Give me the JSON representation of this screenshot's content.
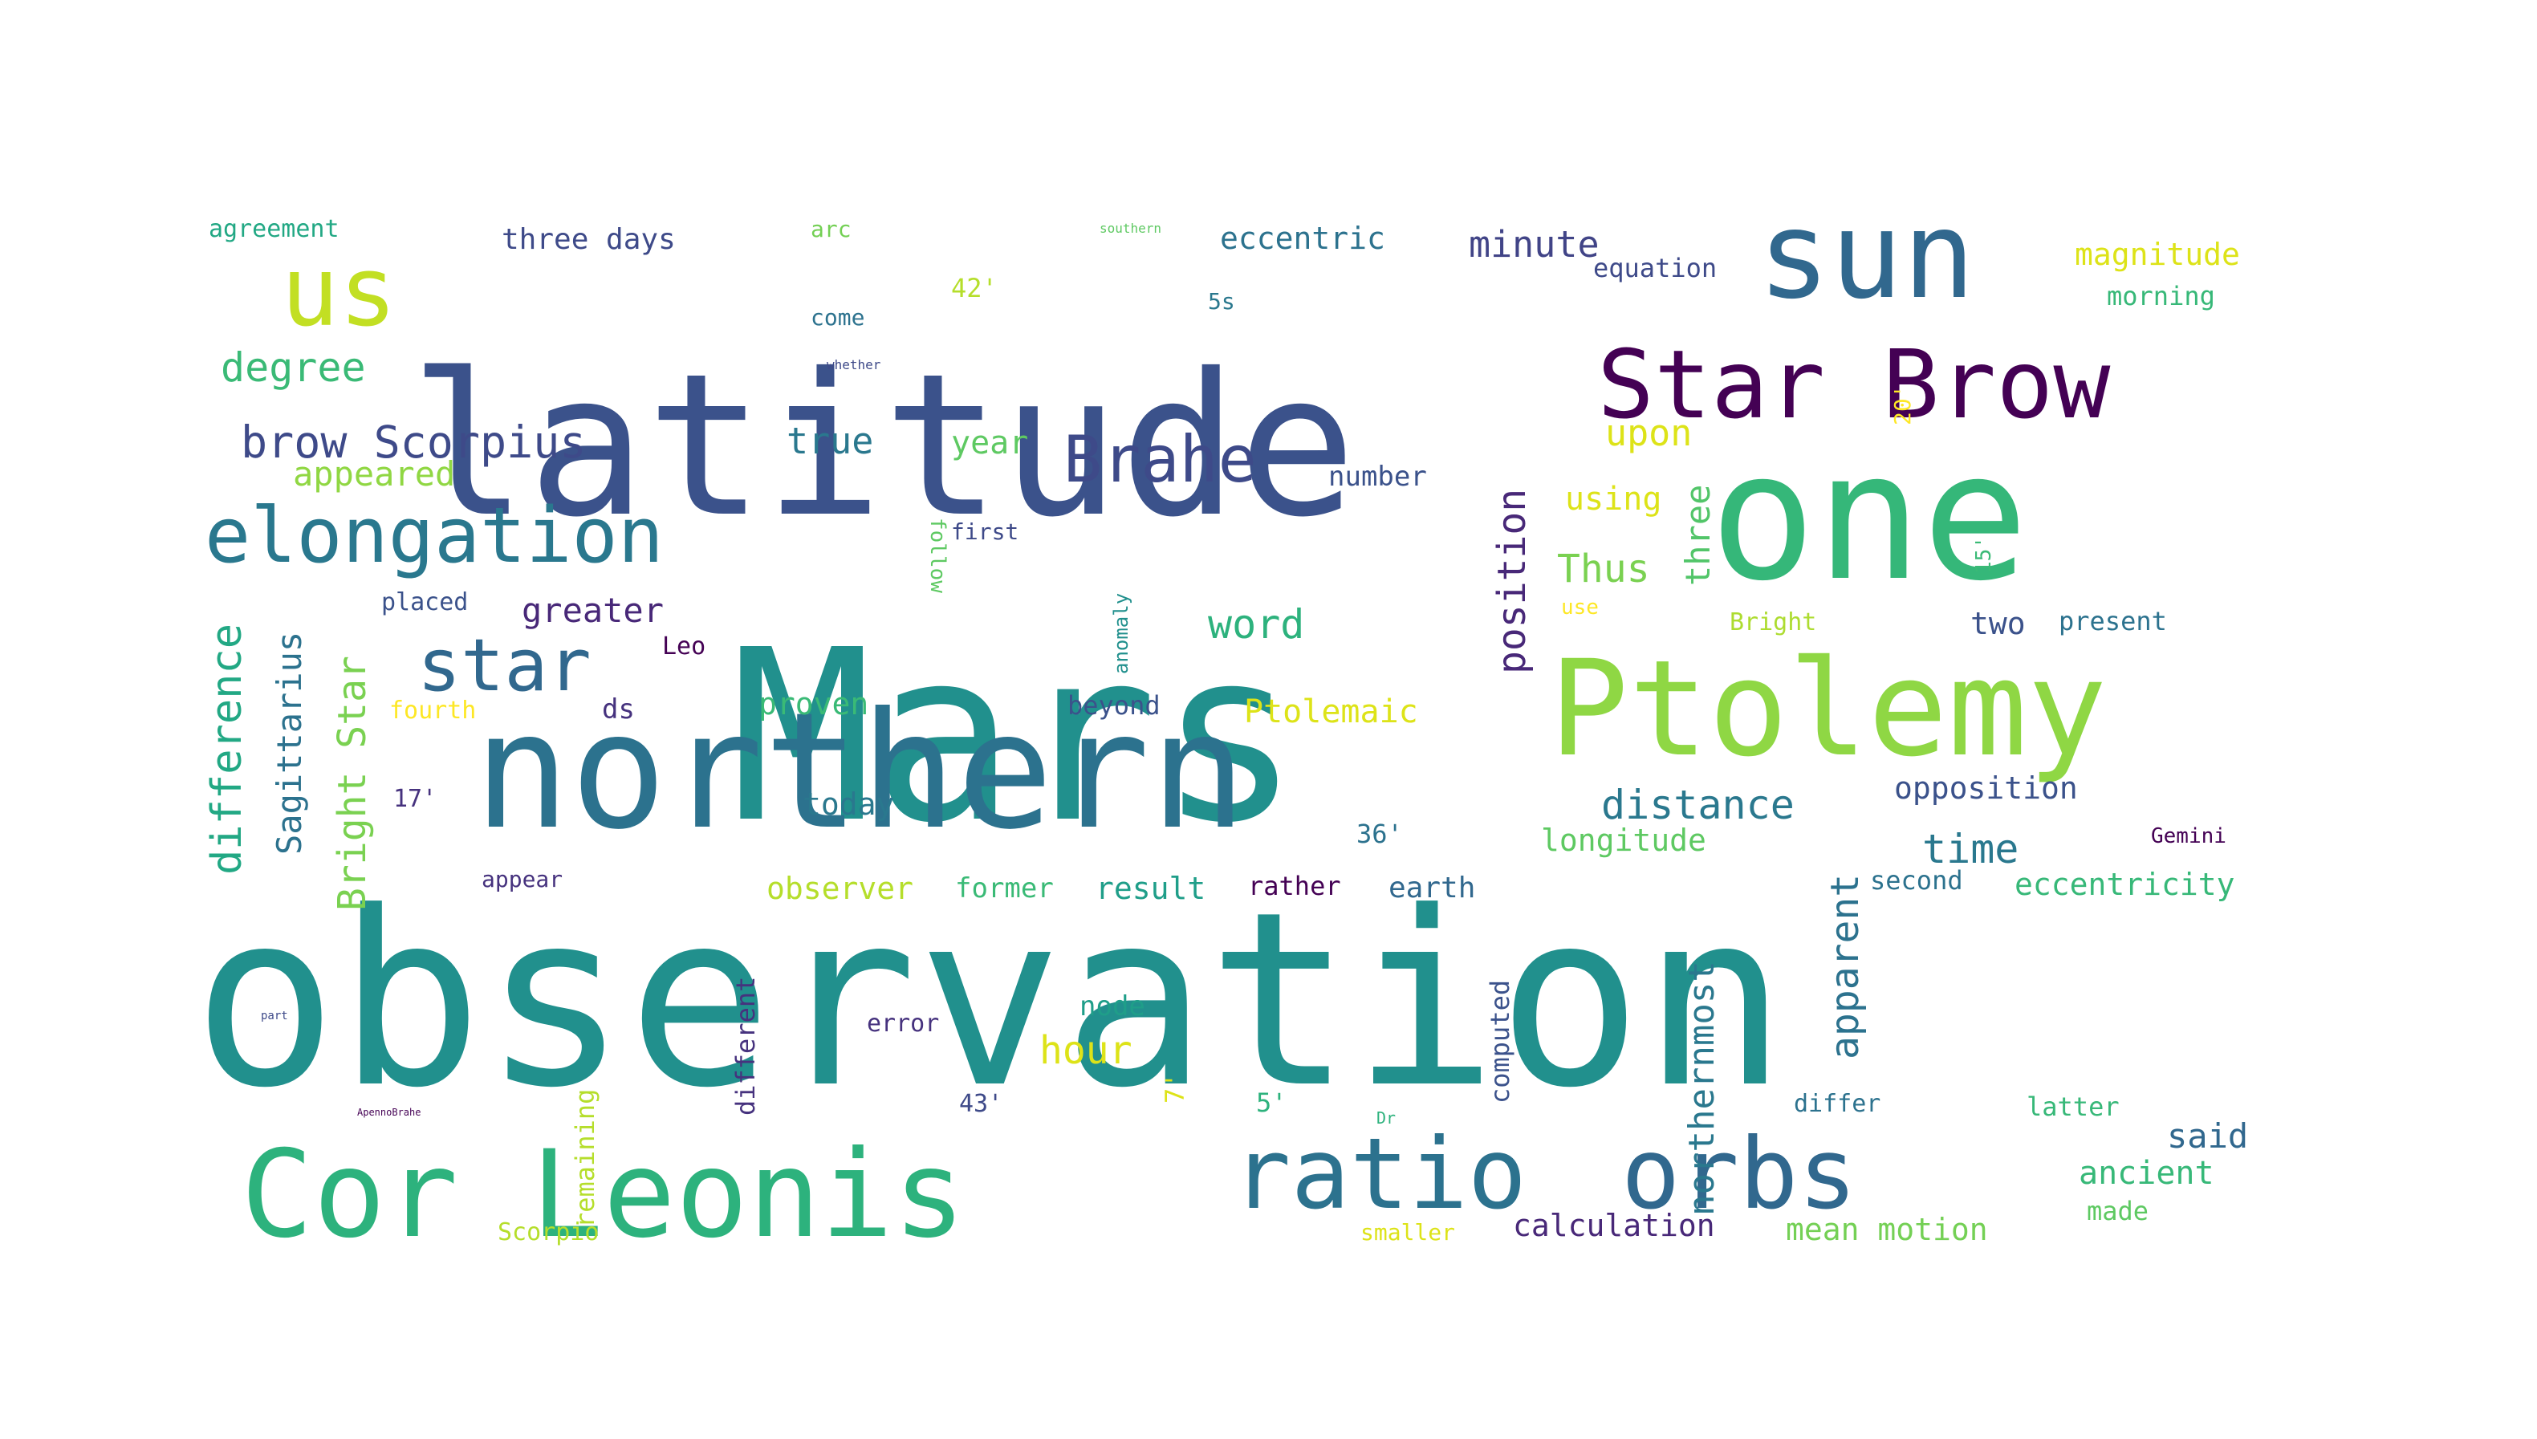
{
  "words": [
    {
      "text": "observation",
      "color": "#21908d"
    },
    {
      "text": "Mars",
      "color": "#21908d"
    },
    {
      "text": "latitude",
      "color": "#3b528b"
    },
    {
      "text": "northern",
      "color": "#2c728e"
    },
    {
      "text": "one",
      "color": "#35b779"
    },
    {
      "text": "sun",
      "color": "#31688e"
    },
    {
      "text": "Ptolemy",
      "color": "#8fd744"
    },
    {
      "text": "Cor Leonis",
      "color": "#2db27d"
    },
    {
      "text": "ratio",
      "color": "#2c728e"
    },
    {
      "text": "orbs",
      "color": "#31688e"
    },
    {
      "text": "Star Brow",
      "color": "#440154"
    },
    {
      "text": "us",
      "color": "#c2df23"
    },
    {
      "text": "elongation",
      "color": "#2a788e"
    },
    {
      "text": "star",
      "color": "#31688e"
    },
    {
      "text": "Brahe",
      "color": "#3e4a89"
    },
    {
      "text": "brow Scorpius",
      "color": "#3e4a89"
    },
    {
      "text": "degree",
      "color": "#3aba76"
    },
    {
      "text": "true",
      "color": "#2a788e"
    },
    {
      "text": "year",
      "color": "#5ec962"
    },
    {
      "text": "upon",
      "color": "#dde318"
    },
    {
      "text": "distance",
      "color": "#2a788e"
    },
    {
      "text": "minute",
      "color": "#414487"
    },
    {
      "text": "three days",
      "color": "#3e4a89"
    },
    {
      "text": "eccentric",
      "color": "#2c728e"
    },
    {
      "text": "magnitude",
      "color": "#dde318"
    },
    {
      "text": "equation",
      "color": "#3e4a89"
    },
    {
      "text": "morning",
      "color": "#37b878"
    },
    {
      "text": "agreement",
      "color": "#22a884"
    },
    {
      "text": "arc",
      "color": "#74d055"
    },
    {
      "text": "southern",
      "color": "#5ec962"
    },
    {
      "text": "come",
      "color": "#2c728e"
    },
    {
      "text": "whether",
      "color": "#3e4a89"
    },
    {
      "text": "42'",
      "color": "#b5de2b"
    },
    {
      "text": "5s",
      "color": "#2a788e"
    },
    {
      "text": "20'",
      "color": "#fde725"
    },
    {
      "text": "appeared",
      "color": "#90d743"
    },
    {
      "text": "first",
      "color": "#3e4a89"
    },
    {
      "text": "number",
      "color": "#3b528b"
    },
    {
      "text": "using",
      "color": "#dde318"
    },
    {
      "text": "Thus",
      "color": "#7ad151"
    },
    {
      "text": "word",
      "color": "#2db27d"
    },
    {
      "text": "three",
      "color": "#52c569"
    },
    {
      "text": "15'",
      "color": "#3aba76"
    },
    {
      "text": "position",
      "color": "#482878"
    },
    {
      "text": "difference",
      "color": "#22a884"
    },
    {
      "text": "Sagittarius",
      "color": "#2c728e"
    },
    {
      "text": "Bright Star",
      "color": "#7ad151"
    },
    {
      "text": "placed",
      "color": "#3b528b"
    },
    {
      "text": "greater",
      "color": "#482878"
    },
    {
      "text": "Leo",
      "color": "#440154"
    },
    {
      "text": "anomaly",
      "color": "#21908d"
    },
    {
      "text": "follow",
      "color": "#5ec962"
    },
    {
      "text": "use",
      "color": "#fde725"
    },
    {
      "text": "Bright",
      "color": "#addc30"
    },
    {
      "text": "two",
      "color": "#3b528b"
    },
    {
      "text": "present",
      "color": "#2c728e"
    },
    {
      "text": "fourth",
      "color": "#fde725"
    },
    {
      "text": "ds",
      "color": "#46327e"
    },
    {
      "text": "proven",
      "color": "#3aba76"
    },
    {
      "text": "beyond",
      "color": "#3b528b"
    },
    {
      "text": "Ptolemaic",
      "color": "#dde318"
    },
    {
      "text": "17'",
      "color": "#46327e"
    },
    {
      "text": "today",
      "color": "#2a788e"
    },
    {
      "text": "36'",
      "color": "#2c728e"
    },
    {
      "text": "longitude",
      "color": "#5ec962"
    },
    {
      "text": "opposition",
      "color": "#3b528b"
    },
    {
      "text": "time",
      "color": "#2a788e"
    },
    {
      "text": "Gemini",
      "color": "#440154"
    },
    {
      "text": "appear",
      "color": "#46327e"
    },
    {
      "text": "observer",
      "color": "#b5de2b"
    },
    {
      "text": "former",
      "color": "#3aba76"
    },
    {
      "text": "result",
      "color": "#1f9e89"
    },
    {
      "text": "rather",
      "color": "#440154"
    },
    {
      "text": "earth",
      "color": "#31688e"
    },
    {
      "text": "second",
      "color": "#2c728e"
    },
    {
      "text": "eccentricity",
      "color": "#37b878"
    },
    {
      "text": "apparent",
      "color": "#2c728e"
    },
    {
      "text": "northernmost",
      "color": "#2a788e"
    },
    {
      "text": "computed",
      "color": "#3b528b"
    },
    {
      "text": "different",
      "color": "#46327e"
    },
    {
      "text": "remaining",
      "color": "#b5de2b"
    },
    {
      "text": "part",
      "color": "#3e4a89"
    },
    {
      "text": "error",
      "color": "#46327e"
    },
    {
      "text": "node",
      "color": "#1f9e89"
    },
    {
      "text": "hour",
      "color": "#dde318"
    },
    {
      "text": "43'",
      "color": "#3e4a89"
    },
    {
      "text": "7'",
      "color": "#dde318"
    },
    {
      "text": "5'",
      "color": "#2db27d"
    },
    {
      "text": "differ",
      "color": "#2c728e"
    },
    {
      "text": "latter",
      "color": "#37b878"
    },
    {
      "text": "said",
      "color": "#31688e"
    },
    {
      "text": "ancient",
      "color": "#37b878"
    },
    {
      "text": "made",
      "color": "#5ec962"
    },
    {
      "text": "mean motion",
      "color": "#74d055"
    },
    {
      "text": "calculation",
      "color": "#482878"
    },
    {
      "text": "smaller",
      "color": "#dde318"
    },
    {
      "text": "Scorpio",
      "color": "#b5de2b"
    },
    {
      "text": "ApennoBrahe",
      "color": "#440154"
    },
    {
      "text": "Dr",
      "color": "#2db27d"
    }
  ]
}
